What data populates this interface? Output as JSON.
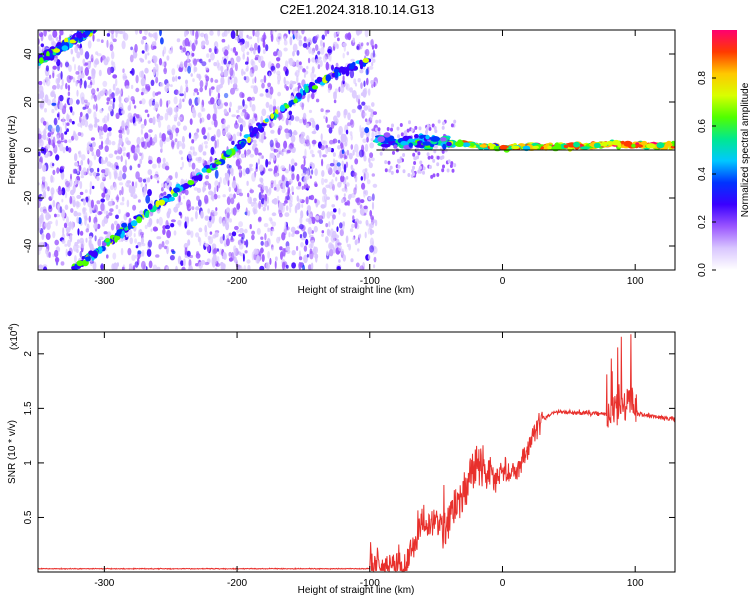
{
  "title": "C2E1.2024.318.10.14.G13",
  "chart_data": [
    {
      "type": "heatmap",
      "xlabel": "Height of straight line (km)",
      "ylabel": "Frequency (Hz)",
      "xlim": [
        -350,
        130
      ],
      "ylim": [
        -50,
        50
      ],
      "x_ticks": [
        -300,
        -200,
        -100,
        0,
        100
      ],
      "y_ticks": [
        -40,
        -20,
        0,
        20,
        40
      ],
      "colorbar": {
        "label": "Normalized spectral amplitude",
        "range": [
          0,
          1
        ],
        "ticks": [
          0.0,
          0.2,
          0.4,
          0.6,
          0.8
        ],
        "colors": [
          "#ffffff",
          "#d9c6ff",
          "#9a55ff",
          "#3a00ff",
          "#0033ff",
          "#00c8ff",
          "#00e890",
          "#50ff00",
          "#d8ff00",
          "#ffc800",
          "#ff3a00",
          "#ff0070"
        ]
      },
      "scatter_cutoff_x": -95,
      "traces": [
        {
          "x": [
            -350,
            -335,
            -320,
            -305
          ],
          "y": [
            37,
            42,
            47,
            52
          ]
        },
        {
          "x": [
            -325,
            -300,
            -275,
            -250,
            -225,
            -200,
            -175,
            -150,
            -125,
            -100
          ],
          "y": [
            -50,
            -40,
            -29,
            -19,
            -10,
            1,
            13,
            24,
            32,
            37
          ]
        },
        {
          "x": [
            -95,
            -80,
            -60,
            -40,
            -20,
            0,
            20,
            40,
            60,
            80,
            100,
            130
          ],
          "y": [
            5,
            3,
            4,
            3,
            2,
            1,
            1.5,
            1.5,
            1.5,
            2.5,
            2,
            2
          ]
        }
      ]
    },
    {
      "type": "line",
      "xlabel": "Height of straight line (km)",
      "ylabel": "SNR (10 * v/v)",
      "y_multiplier": "(x10^4)",
      "xlim": [
        -350,
        130
      ],
      "ylim": [
        0,
        2.2
      ],
      "x_ticks": [
        -300,
        -200,
        -100,
        0,
        100
      ],
      "y_ticks": [
        0.5,
        1.0,
        1.5,
        2.0
      ],
      "series_color": "#e8302c",
      "envelope": {
        "x": [
          -350,
          -100,
          -72,
          -60,
          -55,
          -45,
          -30,
          -20,
          -10,
          10,
          30,
          40,
          60,
          80,
          85,
          95,
          100,
          130
        ],
        "y": [
          0.03,
          0.03,
          0.06,
          0.5,
          0.45,
          0.4,
          0.7,
          1.0,
          0.9,
          0.9,
          1.4,
          1.47,
          1.46,
          1.45,
          1.5,
          1.55,
          1.45,
          1.4
        ]
      }
    }
  ]
}
